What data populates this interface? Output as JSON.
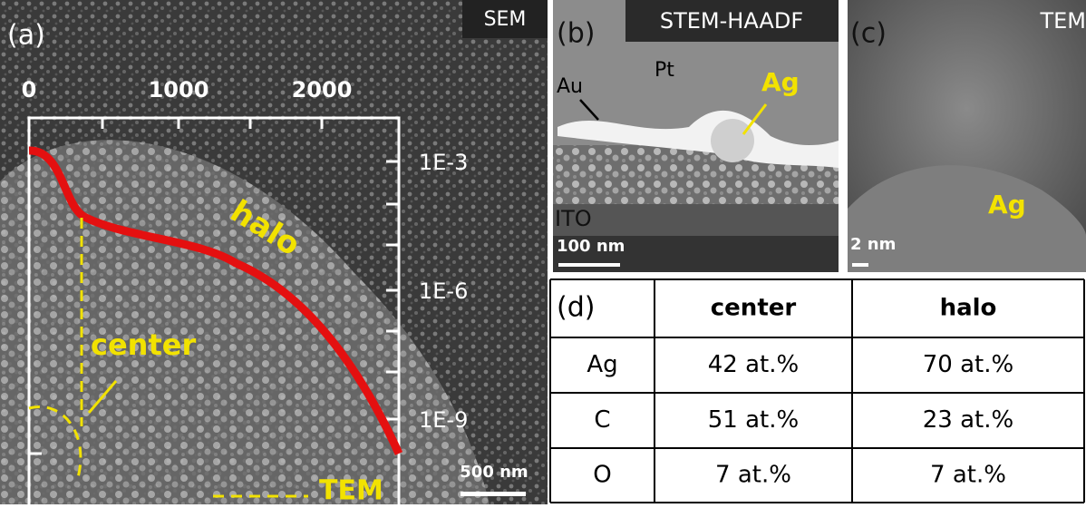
{
  "panel_a": {
    "label": "(a)",
    "technique": "SEM",
    "top_ticks": [
      "0",
      "1000",
      "2000"
    ],
    "right_ticks": [
      "1E-3",
      "1E-6",
      "1E-9"
    ],
    "curve_label": "halo",
    "center_label": "center",
    "tem_label": "TEM",
    "scale_bar": "500 nm"
  },
  "panel_b": {
    "label": "(b)",
    "technique": "STEM-HAADF",
    "labels": [
      "Pt",
      "Au",
      "Ag",
      "ITO"
    ],
    "scale_bar": "100 nm"
  },
  "panel_c": {
    "label": "(c)",
    "technique": "TEM",
    "particle_label": "Ag",
    "scale_bar": "2 nm"
  },
  "panel_d": {
    "label": "(d)",
    "table": {
      "header": [
        "center",
        "halo"
      ],
      "rows": [
        [
          "Ag",
          "42 at.%",
          "70 at.%"
        ],
        [
          "C",
          "51 at.%",
          "23 at.%"
        ],
        [
          "O",
          "7 at.%",
          "7 at.%"
        ]
      ]
    }
  }
}
